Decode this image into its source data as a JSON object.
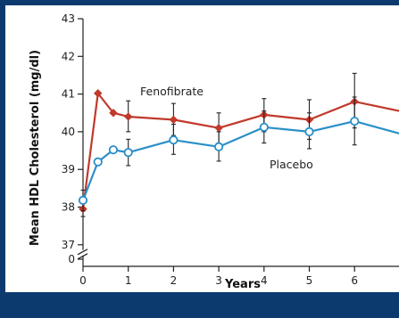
{
  "chart_data": {
    "type": "line",
    "xlabel": "Years",
    "ylabel": "Mean HDL Cholesterol (mg/dl)",
    "xlim": [
      0,
      7
    ],
    "ylim": [
      37,
      43
    ],
    "x_ticks": [
      "0",
      "1",
      "2",
      "3",
      "4",
      "5",
      "6"
    ],
    "y_ticks": [
      "37",
      "38",
      "39",
      "40",
      "41",
      "42",
      "43"
    ],
    "y_break_label": "0",
    "series": [
      {
        "name": "Fenofibrate",
        "color": "#c0392b",
        "marker": "diamond",
        "x": [
          0,
          0.33,
          0.67,
          1,
          2,
          3,
          4,
          5,
          6,
          7
        ],
        "y": [
          37.95,
          41.02,
          40.5,
          40.4,
          40.32,
          40.1,
          40.45,
          40.32,
          40.8,
          40.55
        ],
        "err_low": [
          37.75,
          null,
          null,
          40.0,
          39.9,
          39.7,
          40.0,
          39.8,
          40.1,
          null
        ],
        "err_high": [
          38.15,
          null,
          null,
          40.82,
          40.75,
          40.5,
          40.88,
          40.85,
          41.55,
          null
        ]
      },
      {
        "name": "Placebo",
        "color": "#2a8fc7",
        "marker": "circle",
        "x": [
          0,
          0.33,
          0.67,
          1,
          2,
          3,
          4,
          5,
          6,
          7
        ],
        "y": [
          38.18,
          39.2,
          39.52,
          39.45,
          39.78,
          39.6,
          40.12,
          40.0,
          40.28,
          39.95
        ],
        "err_low": [
          37.9,
          null,
          null,
          39.1,
          39.4,
          39.22,
          39.7,
          39.55,
          39.65,
          null
        ],
        "err_high": [
          38.45,
          null,
          null,
          39.8,
          40.2,
          40.0,
          40.55,
          40.5,
          40.92,
          null
        ]
      }
    ]
  }
}
